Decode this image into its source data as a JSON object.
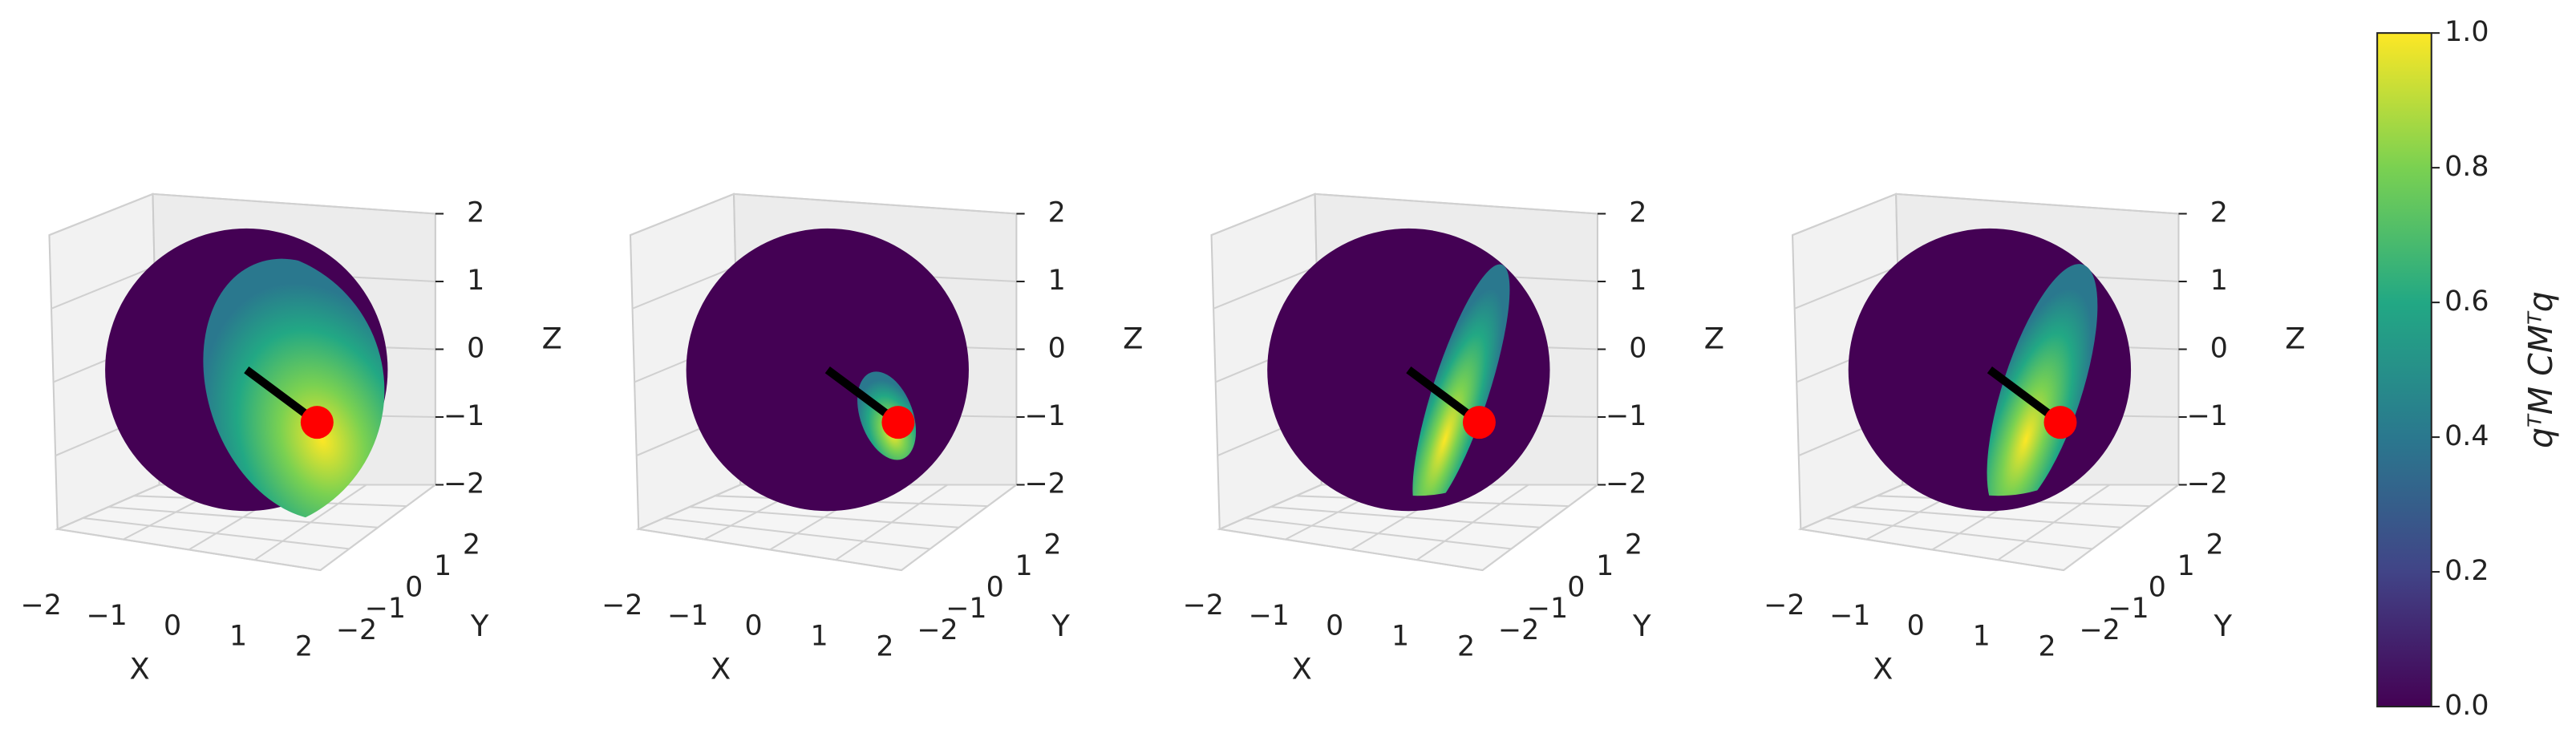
{
  "chart_data": [
    {
      "type": "sphere3d",
      "colormap": "viridis",
      "xlabel": "X",
      "ylabel": "Y",
      "zlabel": "Z",
      "xlim": [
        -2,
        2
      ],
      "xticks": [
        {
          "value": -2,
          "label": "−2"
        },
        {
          "value": -1,
          "label": "−1"
        },
        0,
        1,
        2
      ],
      "ylim": [
        -2,
        2
      ],
      "yticks": [
        {
          "value": -2,
          "label": "−2"
        },
        {
          "value": -1,
          "label": "−1"
        },
        0,
        1,
        2
      ],
      "zlim": [
        -2,
        2
      ],
      "zticks": [
        {
          "value": -2,
          "label": "−2"
        },
        {
          "value": -1,
          "label": "−1"
        },
        0,
        1,
        2
      ]
    },
    {
      "type": "sphere3d",
      "colormap": "viridis",
      "xlabel": "X",
      "ylabel": "Y",
      "zlabel": "Z",
      "xlim": [
        -2,
        2
      ],
      "xticks": [
        {
          "value": -2,
          "label": "−2"
        },
        {
          "value": -1,
          "label": "−1"
        },
        0,
        1,
        2
      ],
      "ylim": [
        -2,
        2
      ],
      "yticks": [
        {
          "value": -2,
          "label": "−2"
        },
        {
          "value": -1,
          "label": "−1"
        },
        0,
        1,
        2
      ],
      "zlim": [
        -2,
        2
      ],
      "zticks": [
        {
          "value": -2,
          "label": "−2"
        },
        {
          "value": -1,
          "label": "−1"
        },
        0,
        1,
        2
      ]
    },
    {
      "type": "sphere3d",
      "colormap": "viridis",
      "xlabel": "X",
      "ylabel": "Y",
      "zlabel": "Z",
      "xlim": [
        -2,
        2
      ],
      "xticks": [
        {
          "value": -2,
          "label": "−2"
        },
        {
          "value": -1,
          "label": "−1"
        },
        0,
        1,
        2
      ],
      "ylim": [
        -2,
        2
      ],
      "yticks": [
        {
          "value": -2,
          "label": "−2"
        },
        {
          "value": -1,
          "label": "−1"
        },
        0,
        1,
        2
      ],
      "zlim": [
        -2,
        2
      ],
      "zticks": [
        {
          "value": -2,
          "label": "−2"
        },
        {
          "value": -1,
          "label": "−1"
        },
        0,
        1,
        2
      ]
    },
    {
      "type": "sphere3d",
      "colormap": "viridis",
      "xlabel": "X",
      "ylabel": "Y",
      "zlabel": "Z",
      "xlim": [
        -2,
        2
      ],
      "xticks": [
        {
          "value": -2,
          "label": "−2"
        },
        {
          "value": -1,
          "label": "−1"
        },
        0,
        1,
        2
      ],
      "ylim": [
        -2,
        2
      ],
      "yticks": [
        {
          "value": -2,
          "label": "−2"
        },
        {
          "value": -1,
          "label": "−1"
        },
        0,
        1,
        2
      ],
      "zlim": [
        -2,
        2
      ],
      "zticks": [
        {
          "value": -2,
          "label": "−2"
        },
        {
          "value": -1,
          "label": "−1"
        },
        0,
        1,
        2
      ]
    },
    {
      "type": "colorbar",
      "colormap": "viridis",
      "label": "qᵀM CMᵀq",
      "ylim": [
        0,
        1
      ],
      "yticks": [
        {
          "value": 0,
          "label": "0.0"
        },
        {
          "value": 0.2,
          "label": "0.2"
        },
        {
          "value": 0.4,
          "label": "0.4"
        },
        {
          "value": 0.6,
          "label": "0.6"
        },
        {
          "value": 0.8,
          "label": "0.8"
        },
        {
          "value": 1,
          "label": "1.0"
        }
      ]
    }
  ]
}
